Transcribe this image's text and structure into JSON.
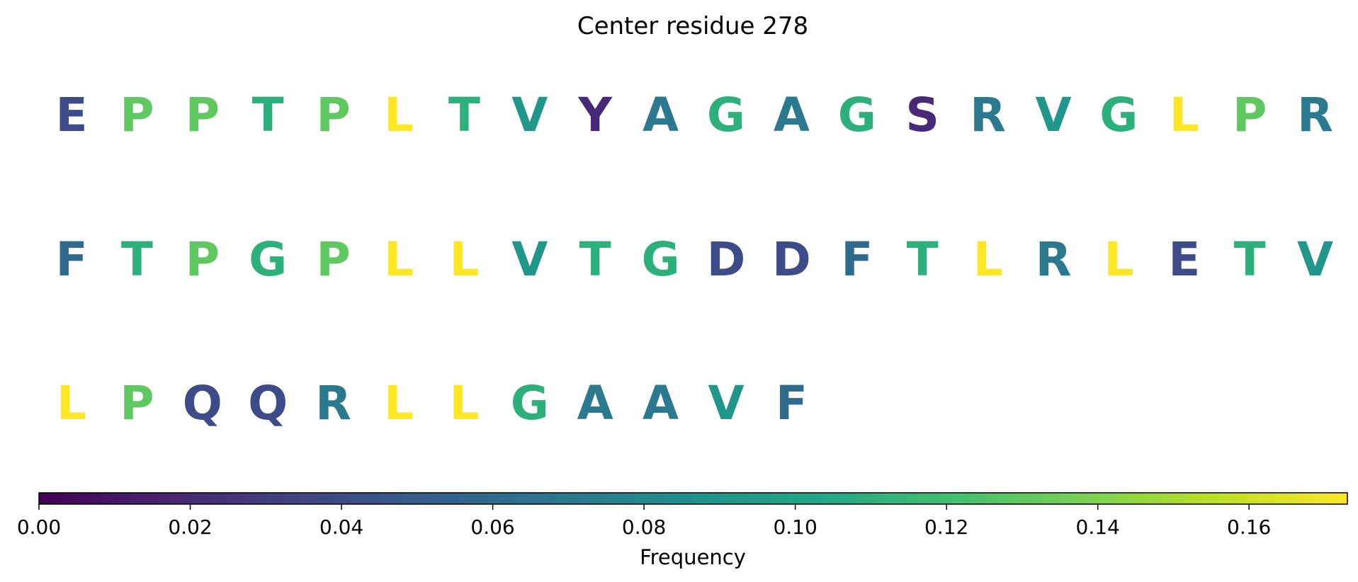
{
  "chart_data": {
    "type": "sequence-colored-letters",
    "title": "Center residue 278",
    "residues": [
      {
        "letter": "E",
        "frequency": 0.04
      },
      {
        "letter": "P",
        "frequency": 0.13
      },
      {
        "letter": "P",
        "frequency": 0.13
      },
      {
        "letter": "T",
        "frequency": 0.11
      },
      {
        "letter": "P",
        "frequency": 0.13
      },
      {
        "letter": "L",
        "frequency": 0.173
      },
      {
        "letter": "T",
        "frequency": 0.11
      },
      {
        "letter": "V",
        "frequency": 0.09
      },
      {
        "letter": "Y",
        "frequency": 0.02
      },
      {
        "letter": "A",
        "frequency": 0.07
      },
      {
        "letter": "G",
        "frequency": 0.11
      },
      {
        "letter": "A",
        "frequency": 0.07
      },
      {
        "letter": "G",
        "frequency": 0.11
      },
      {
        "letter": "S",
        "frequency": 0.02
      },
      {
        "letter": "R",
        "frequency": 0.07
      },
      {
        "letter": "V",
        "frequency": 0.09
      },
      {
        "letter": "G",
        "frequency": 0.11
      },
      {
        "letter": "L",
        "frequency": 0.173
      },
      {
        "letter": "P",
        "frequency": 0.13
      },
      {
        "letter": "R",
        "frequency": 0.07
      },
      {
        "letter": "F",
        "frequency": 0.06
      },
      {
        "letter": "T",
        "frequency": 0.11
      },
      {
        "letter": "P",
        "frequency": 0.13
      },
      {
        "letter": "G",
        "frequency": 0.11
      },
      {
        "letter": "P",
        "frequency": 0.13
      },
      {
        "letter": "L",
        "frequency": 0.173
      },
      {
        "letter": "L",
        "frequency": 0.173
      },
      {
        "letter": "V",
        "frequency": 0.09
      },
      {
        "letter": "T",
        "frequency": 0.11
      },
      {
        "letter": "G",
        "frequency": 0.11
      },
      {
        "letter": "D",
        "frequency": 0.04
      },
      {
        "letter": "D",
        "frequency": 0.04
      },
      {
        "letter": "F",
        "frequency": 0.06
      },
      {
        "letter": "T",
        "frequency": 0.11
      },
      {
        "letter": "L",
        "frequency": 0.173
      },
      {
        "letter": "R",
        "frequency": 0.07
      },
      {
        "letter": "L",
        "frequency": 0.173
      },
      {
        "letter": "E",
        "frequency": 0.04
      },
      {
        "letter": "T",
        "frequency": 0.11
      },
      {
        "letter": "V",
        "frequency": 0.09
      },
      {
        "letter": "L",
        "frequency": 0.173
      },
      {
        "letter": "P",
        "frequency": 0.13
      },
      {
        "letter": "Q",
        "frequency": 0.04
      },
      {
        "letter": "Q",
        "frequency": 0.04
      },
      {
        "letter": "R",
        "frequency": 0.07
      },
      {
        "letter": "L",
        "frequency": 0.173
      },
      {
        "letter": "L",
        "frequency": 0.173
      },
      {
        "letter": "G",
        "frequency": 0.11
      },
      {
        "letter": "A",
        "frequency": 0.07
      },
      {
        "letter": "A",
        "frequency": 0.07
      },
      {
        "letter": "V",
        "frequency": 0.09
      },
      {
        "letter": "F",
        "frequency": 0.06
      }
    ],
    "colorbar": {
      "label": "Frequency",
      "colormap": "viridis",
      "range": [
        0,
        0.173
      ],
      "ticks": [
        0.0,
        0.02,
        0.04,
        0.06,
        0.08,
        0.1,
        0.12,
        0.14,
        0.16
      ],
      "tick_labels": [
        "0.00",
        "0.02",
        "0.04",
        "0.06",
        "0.08",
        "0.10",
        "0.12",
        "0.14",
        "0.16"
      ],
      "orientation": "horizontal",
      "placement": "bottom"
    }
  }
}
